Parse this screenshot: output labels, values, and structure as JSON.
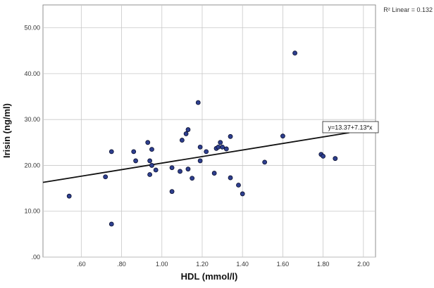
{
  "chart_data": {
    "type": "scatter",
    "title": "",
    "xlabel": "HDL (mmol/l)",
    "ylabel": "Irisin (ng/ml)",
    "xlim": [
      0.41,
      2.06
    ],
    "ylim": [
      0,
      55
    ],
    "x_ticks": [
      0.6,
      0.8,
      1.0,
      1.2,
      1.4,
      1.6,
      1.8,
      2.0
    ],
    "x_tick_labels": [
      ".60",
      ".80",
      "1.00",
      "1.20",
      "1.40",
      "1.60",
      "1.80",
      "2.00"
    ],
    "y_ticks": [
      0,
      10,
      20,
      30,
      40,
      50
    ],
    "y_tick_labels": [
      ".00",
      "10.00",
      "20.00",
      "30.00",
      "40.00",
      "50.00"
    ],
    "grid": true,
    "r2_label": "R² Linear = 0.132",
    "fit_line": {
      "intercept": 13.37,
      "slope": 7.13,
      "equation_label": "y=13.37+7.13*x",
      "x_range": [
        0.41,
        1.93
      ]
    },
    "points": [
      {
        "x": 0.54,
        "y": 13.3
      },
      {
        "x": 0.72,
        "y": 17.5
      },
      {
        "x": 0.75,
        "y": 23.0
      },
      {
        "x": 0.75,
        "y": 7.2
      },
      {
        "x": 0.86,
        "y": 23.0
      },
      {
        "x": 0.87,
        "y": 21.0
      },
      {
        "x": 0.93,
        "y": 25.0
      },
      {
        "x": 0.94,
        "y": 18.0
      },
      {
        "x": 0.94,
        "y": 21.0
      },
      {
        "x": 0.95,
        "y": 23.5
      },
      {
        "x": 0.95,
        "y": 20.0
      },
      {
        "x": 0.97,
        "y": 19.0
      },
      {
        "x": 1.05,
        "y": 19.5
      },
      {
        "x": 1.05,
        "y": 14.3
      },
      {
        "x": 1.09,
        "y": 18.7
      },
      {
        "x": 1.1,
        "y": 25.5
      },
      {
        "x": 1.12,
        "y": 26.9
      },
      {
        "x": 1.13,
        "y": 27.8
      },
      {
        "x": 1.13,
        "y": 19.2
      },
      {
        "x": 1.15,
        "y": 17.2
      },
      {
        "x": 1.18,
        "y": 33.7
      },
      {
        "x": 1.19,
        "y": 24.0
      },
      {
        "x": 1.19,
        "y": 21.0
      },
      {
        "x": 1.22,
        "y": 23.0
      },
      {
        "x": 1.26,
        "y": 18.3
      },
      {
        "x": 1.27,
        "y": 23.7
      },
      {
        "x": 1.28,
        "y": 24.0
      },
      {
        "x": 1.29,
        "y": 25.0
      },
      {
        "x": 1.3,
        "y": 24.0
      },
      {
        "x": 1.32,
        "y": 23.6
      },
      {
        "x": 1.34,
        "y": 26.3
      },
      {
        "x": 1.34,
        "y": 17.3
      },
      {
        "x": 1.38,
        "y": 15.7
      },
      {
        "x": 1.4,
        "y": 13.8
      },
      {
        "x": 1.51,
        "y": 20.7
      },
      {
        "x": 1.6,
        "y": 26.4
      },
      {
        "x": 1.66,
        "y": 44.5
      },
      {
        "x": 1.79,
        "y": 22.4
      },
      {
        "x": 1.8,
        "y": 22.0
      },
      {
        "x": 1.86,
        "y": 21.5
      }
    ],
    "colors": {
      "point_fill": "#2e3f8f",
      "point_stroke": "#0a0f2e",
      "grid": "#c8c8c8",
      "axis": "#555555",
      "fit_line": "#111111"
    }
  }
}
